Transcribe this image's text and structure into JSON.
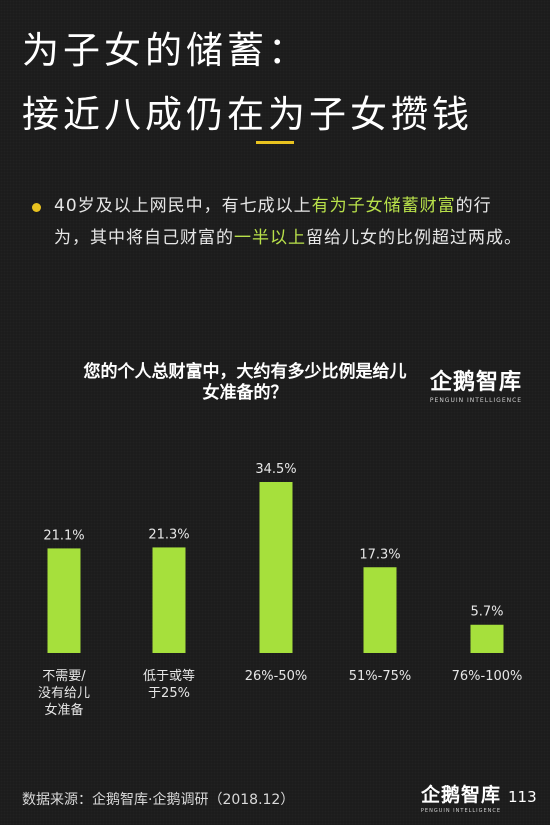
{
  "header": {
    "title_line1": "为子女的储蓄：",
    "title_line2": "接近八成仍在为子女攒钱"
  },
  "summary": {
    "seg1": "40岁及以上网民中，有七成以上",
    "seg2": "有为子女储蓄财富",
    "seg3": "的行为，其中将自己财富的",
    "seg4": "一半以上",
    "seg5": "留给儿女的比例超过两成。"
  },
  "brand": {
    "name": "企鹅智库",
    "tagline": "PENGUIN INTELLIGENCE"
  },
  "footer": {
    "source": "数据来源：企鹅智库·企鹅调研（2018.12）",
    "page_number": "113"
  },
  "colors": {
    "background": "#1c1c1c",
    "bar": "#a6e03c",
    "accent": "#e8c21f",
    "highlight": "#b8e04a"
  },
  "chart_data": {
    "type": "bar",
    "title": "您的个人总财富中，大约有多少比例是给儿女准备的？",
    "categories": [
      [
        "不需要/",
        "没有给儿",
        "女准备"
      ],
      [
        "低于或等",
        "于25%"
      ],
      [
        "26%-50%"
      ],
      [
        "51%-75%"
      ],
      [
        "76%-100%"
      ]
    ],
    "values": [
      21.1,
      21.3,
      34.5,
      17.3,
      5.7
    ],
    "value_labels": [
      "21.1%",
      "21.3%",
      "34.5%",
      "17.3%",
      "5.7%"
    ],
    "ylim": [
      0,
      34.5
    ],
    "grid": false,
    "legend": "none"
  }
}
